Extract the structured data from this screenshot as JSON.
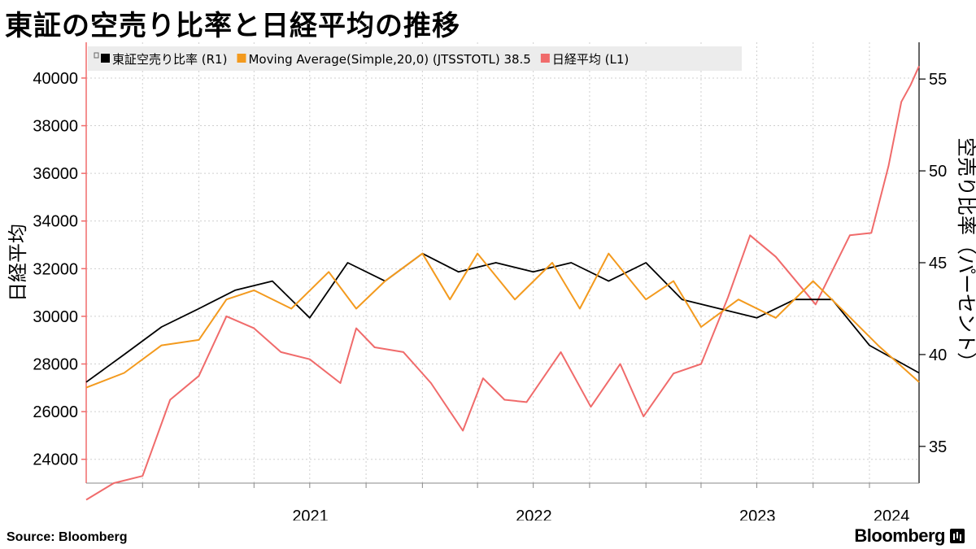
{
  "title": "東証の空売り比率と日経平均の推移",
  "source": "Source:  Bloomberg",
  "brand": "Bloomberg",
  "legend": [
    {
      "label": "東証空売り比率 (R1)",
      "color": "#000000"
    },
    {
      "label": "Moving Average(Simple,20,0) (JTSSTOTL) 38.5",
      "color": "#f39a1e"
    },
    {
      "label": "日経平均 (L1)",
      "color": "#f06b6b"
    }
  ],
  "chart_data": {
    "type": "line",
    "x_ticks": [
      "2021",
      "2022",
      "2023",
      "2024"
    ],
    "xlim": [
      "2020-07-01",
      "2024-03-22"
    ],
    "left_axis": {
      "label": "日経平均",
      "range": [
        23000,
        41500
      ],
      "ticks": [
        24000,
        26000,
        28000,
        30000,
        32000,
        34000,
        36000,
        38000,
        40000
      ]
    },
    "right_axis": {
      "label": "空売り比率（パーセント）",
      "range": [
        33,
        57
      ],
      "ticks": [
        35,
        40,
        45,
        50,
        55
      ]
    },
    "grid": true,
    "legend_position": "top-left",
    "series": [
      {
        "name": "東証空売り比率 (R1)",
        "axis": "right",
        "color": "#000000",
        "x": [
          "2020-07-01",
          "2020-09-01",
          "2020-11-01",
          "2021-01-01",
          "2021-03-01",
          "2021-05-01",
          "2021-07-01",
          "2021-09-01",
          "2021-11-01",
          "2022-01-01",
          "2022-03-01",
          "2022-05-01",
          "2022-07-01",
          "2022-09-01",
          "2022-11-01",
          "2023-01-01",
          "2023-03-01",
          "2023-05-01",
          "2023-07-01",
          "2023-09-01",
          "2023-11-01",
          "2024-01-01",
          "2024-03-22"
        ],
        "values": [
          38.5,
          40.0,
          41.5,
          42.5,
          43.5,
          44.0,
          42.0,
          45.0,
          44.0,
          45.5,
          44.5,
          45.0,
          44.5,
          45.0,
          44.0,
          45.0,
          43.0,
          42.5,
          42.0,
          43.0,
          43.0,
          40.5,
          39.0
        ]
      },
      {
        "name": "Moving Average(Simple,20,0) (JTSSTOTL) 38.5",
        "axis": "right",
        "color": "#f39a1e",
        "x": [
          "2020-07-01",
          "2020-09-01",
          "2020-11-01",
          "2021-01-01",
          "2021-02-15",
          "2021-04-01",
          "2021-06-01",
          "2021-08-01",
          "2021-09-15",
          "2021-11-01",
          "2022-01-01",
          "2022-02-15",
          "2022-04-01",
          "2022-06-01",
          "2022-08-01",
          "2022-09-15",
          "2022-11-01",
          "2023-01-01",
          "2023-02-15",
          "2023-04-01",
          "2023-06-01",
          "2023-08-01",
          "2023-10-01",
          "2023-12-01",
          "2024-01-15",
          "2024-03-22"
        ],
        "values": [
          38.2,
          39.0,
          40.5,
          40.8,
          43.0,
          43.5,
          42.5,
          44.5,
          42.5,
          44.0,
          45.5,
          43.0,
          45.5,
          43.0,
          45.0,
          42.5,
          45.5,
          43.0,
          44.0,
          41.5,
          43.0,
          42.0,
          44.0,
          42.0,
          40.5,
          38.5
        ]
      },
      {
        "name": "日経平均 (L1)",
        "axis": "left",
        "color": "#f06b6b",
        "x": [
          "2020-07-01",
          "2020-08-15",
          "2020-10-01",
          "2020-11-15",
          "2021-01-01",
          "2021-02-15",
          "2021-04-01",
          "2021-05-15",
          "2021-07-01",
          "2021-08-20",
          "2021-09-15",
          "2021-10-15",
          "2021-12-01",
          "2022-01-15",
          "2022-03-08",
          "2022-04-10",
          "2022-05-15",
          "2022-06-20",
          "2022-08-15",
          "2022-10-03",
          "2022-11-20",
          "2022-12-28",
          "2023-02-15",
          "2023-04-01",
          "2023-05-15",
          "2023-06-20",
          "2023-08-01",
          "2023-10-05",
          "2023-11-30",
          "2024-01-04",
          "2024-02-01",
          "2024-02-22",
          "2024-03-08",
          "2024-03-22"
        ],
        "values": [
          22300,
          23000,
          23300,
          26500,
          27500,
          30000,
          29500,
          28500,
          28200,
          27200,
          29500,
          28700,
          28500,
          27200,
          25200,
          27400,
          26500,
          26400,
          28500,
          26200,
          28000,
          25800,
          27600,
          28000,
          30800,
          33400,
          32500,
          30500,
          33400,
          33500,
          36300,
          39000,
          39700,
          40500
        ]
      }
    ]
  }
}
